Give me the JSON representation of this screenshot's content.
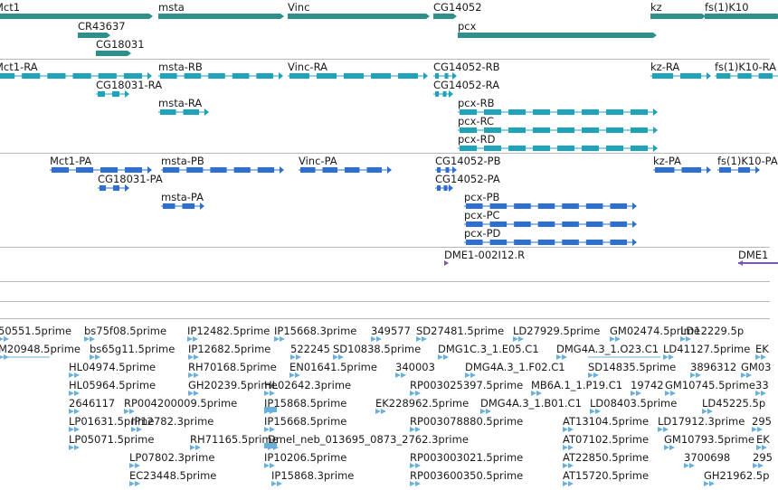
{
  "colors": {
    "gene": "#2f8f8a",
    "mrna": "#1fa3b8",
    "protein": "#2e6fd3",
    "probe": "#7a55b8",
    "est": "#6ab0dc",
    "separator": "#b8b8b8",
    "text": "#1a1a1a"
  },
  "tracks": [
    {
      "id": "gene",
      "features": [
        {
          "label": "Mct1"
        },
        {
          "label": "msta"
        },
        {
          "label": "Vinc"
        },
        {
          "label": "CG14052"
        },
        {
          "label": "kz"
        },
        {
          "label": "fs(1)K10"
        },
        {
          "label": "CR43637"
        },
        {
          "label": "CG18031"
        },
        {
          "label": "pcx"
        }
      ]
    },
    {
      "id": "mrna",
      "features": [
        {
          "label": "Mct1-RA"
        },
        {
          "label": "msta-RB"
        },
        {
          "label": "Vinc-RA"
        },
        {
          "label": "CG14052-RB"
        },
        {
          "label": "kz-RA"
        },
        {
          "label": "fs(1)K10-RA"
        },
        {
          "label": "CG18031-RA"
        },
        {
          "label": "CG14052-RA"
        },
        {
          "label": "msta-RA"
        },
        {
          "label": "pcx-RB"
        },
        {
          "label": "pcx-RC"
        },
        {
          "label": "pcx-RD"
        }
      ]
    },
    {
      "id": "protein",
      "features": [
        {
          "label": "Mct1-PA"
        },
        {
          "label": "msta-PB"
        },
        {
          "label": "Vinc-PA"
        },
        {
          "label": "CG14052-PB"
        },
        {
          "label": "kz-PA"
        },
        {
          "label": "fs(1)K10-PA"
        },
        {
          "label": "CG18031-PA"
        },
        {
          "label": "CG14052-PA"
        },
        {
          "label": "msta-PA"
        },
        {
          "label": "pcx-PB"
        },
        {
          "label": "pcx-PC"
        },
        {
          "label": "pcx-PD"
        }
      ]
    },
    {
      "id": "probe",
      "features": [
        {
          "label": "DME1-002I12.R"
        },
        {
          "label": "DME1"
        }
      ]
    },
    {
      "id": "est",
      "features": [
        {
          "label": "50551.5prime"
        },
        {
          "label": "bs75f08.5prime"
        },
        {
          "label": "IP12482.5prime"
        },
        {
          "label": "IP15668.3prime"
        },
        {
          "label": "349577"
        },
        {
          "label": "SD27481.5prime"
        },
        {
          "label": "LD27929.5prime"
        },
        {
          "label": "GM02474.5prime"
        },
        {
          "label": "LD12229.5p"
        },
        {
          "label": "M20948.5prime"
        },
        {
          "label": "bs65g11.5prime"
        },
        {
          "label": "IP12682.5prime"
        },
        {
          "label": "522245"
        },
        {
          "label": "SD10838.5prime"
        },
        {
          "label": "DMG1C.3_1.E05.C1"
        },
        {
          "label": "DMG4A.3_1.O23.C1"
        },
        {
          "label": "LD41127.5prime"
        },
        {
          "label": "EK"
        },
        {
          "label": "HL04974.5prime"
        },
        {
          "label": "RH70168.5prime"
        },
        {
          "label": "EN01641.5prime"
        },
        {
          "label": "340003"
        },
        {
          "label": "DMG4A.3_1.F02.C1"
        },
        {
          "label": "SD14835.5prime"
        },
        {
          "label": "3896312"
        },
        {
          "label": "GM03"
        },
        {
          "label": "HL05964.5prime"
        },
        {
          "label": "GH20239.5prime"
        },
        {
          "label": "HL02642.3prime"
        },
        {
          "label": "RP003025397.5prime"
        },
        {
          "label": "MB6A.1_1.P19.C1"
        },
        {
          "label": "19742"
        },
        {
          "label": "GM10745.5prime"
        },
        {
          "label": "33"
        },
        {
          "label": "2646117"
        },
        {
          "label": "RP004200009.5prime"
        },
        {
          "label": "IP15868.5prime"
        },
        {
          "label": "EK228962.5prime"
        },
        {
          "label": "DMG4A.3_1.B01.C1"
        },
        {
          "label": "LD08403.5prime"
        },
        {
          "label": "LD45225.5p"
        },
        {
          "label": "LP01631.5prime"
        },
        {
          "label": "IP12782.3prime"
        },
        {
          "label": "IP15668.5prime"
        },
        {
          "label": "RP003078880.5prime"
        },
        {
          "label": "AT13104.5prime"
        },
        {
          "label": "LD17912.3prime"
        },
        {
          "label": "295"
        },
        {
          "label": "LP05071.5prime"
        },
        {
          "label": "RH71165.5prime"
        },
        {
          "label": "Dmel_neb_013695_0873_2762.3prime"
        },
        {
          "label": "AT07102.5prime"
        },
        {
          "label": "GM10793.5prime"
        },
        {
          "label": "EK"
        },
        {
          "label": "LP07802.3prime"
        },
        {
          "label": "IP10206.5prime"
        },
        {
          "label": "RP003003021.5prime"
        },
        {
          "label": "AT22850.5prime"
        },
        {
          "label": "3700698"
        },
        {
          "label": "295"
        },
        {
          "label": "EC23448.5prime"
        },
        {
          "label": "IP15868.3prime"
        },
        {
          "label": "RP003600350.5prime"
        },
        {
          "label": "AT15720.5prime"
        },
        {
          "label": "GH21962.5p"
        }
      ]
    }
  ]
}
